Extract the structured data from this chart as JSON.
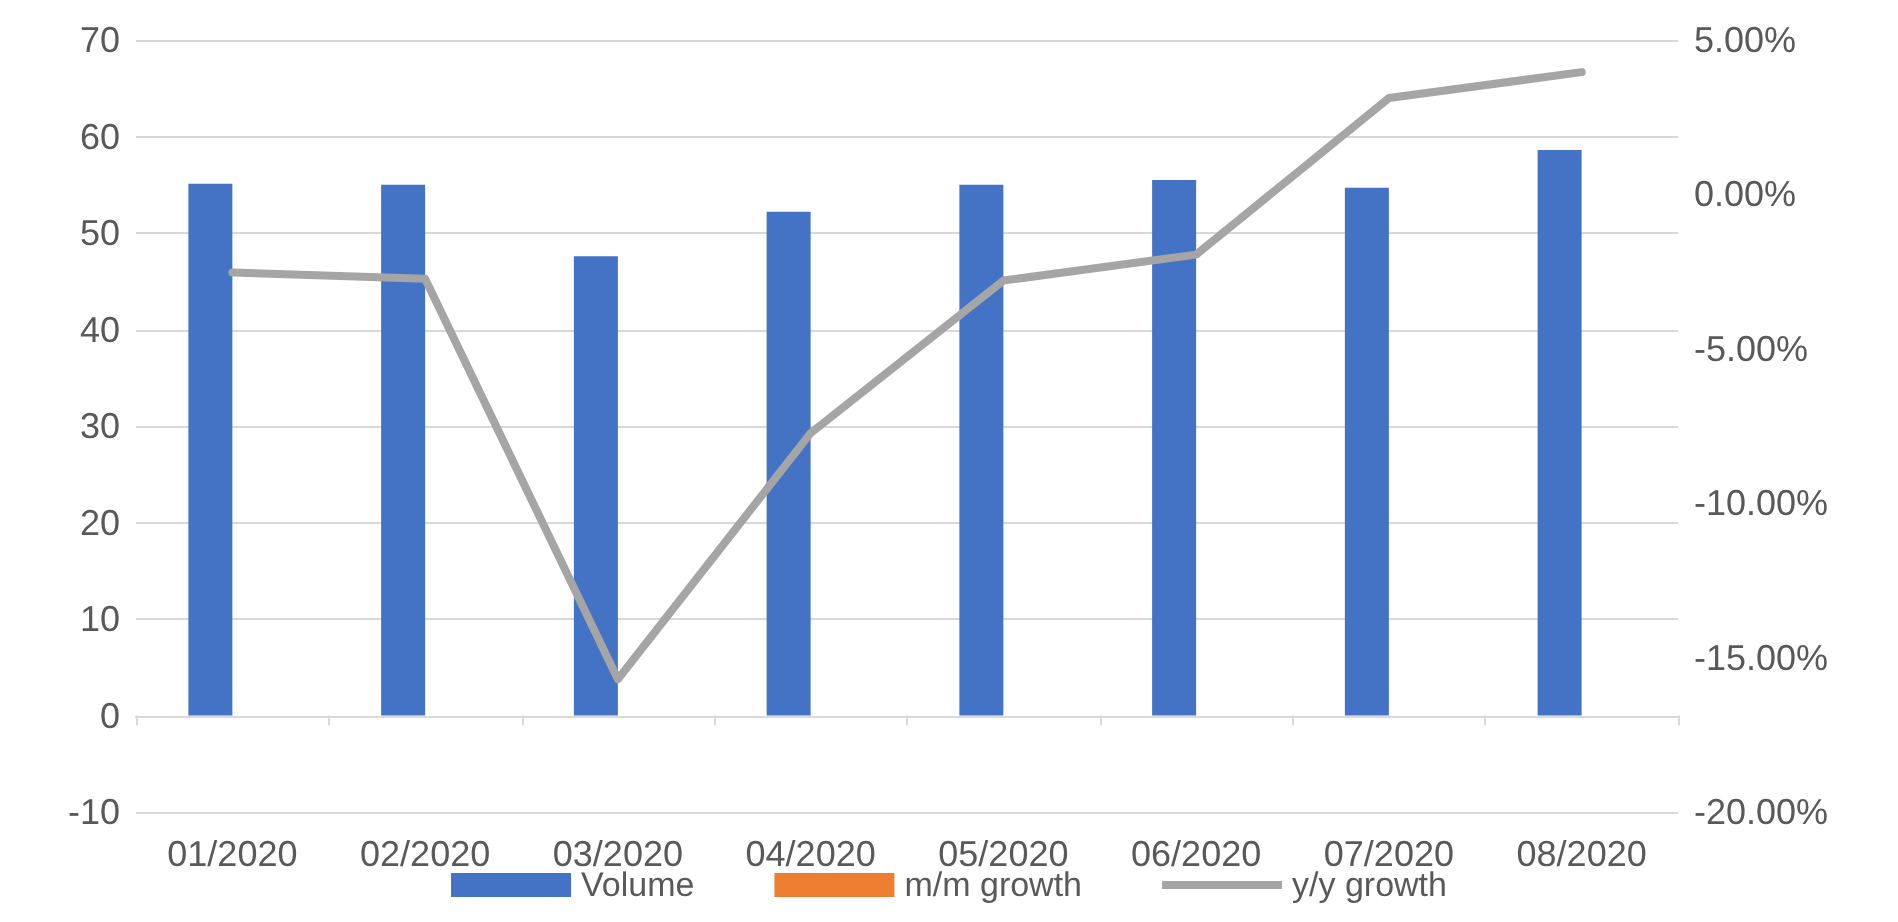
{
  "chart_data": {
    "type": "bar",
    "categories": [
      "01/2020",
      "02/2020",
      "03/2020",
      "04/2020",
      "05/2020",
      "06/2020",
      "07/2020",
      "08/2020"
    ],
    "series": [
      {
        "name": "Volume",
        "color": "#4472c4",
        "values": [
          55.1,
          55.0,
          47.6,
          52.2,
          55.0,
          55.5,
          54.7,
          58.6
        ]
      },
      {
        "name": "m/m growth",
        "color": "#ed7d31",
        "values": [
          null,
          null,
          null,
          null,
          null,
          null,
          null,
          null
        ]
      },
      {
        "name": "y/y growth",
        "type": "line",
        "axis": "y2",
        "color": "#a5a5a5",
        "marker": "none",
        "values": [
          -2.53,
          -2.73,
          -15.7,
          -7.73,
          -2.79,
          -1.95,
          3.12,
          3.96
        ]
      }
    ],
    "ylim": [
      -10,
      70
    ],
    "yticks": [
      -10,
      0,
      10,
      20,
      30,
      40,
      50,
      60,
      70
    ],
    "y2lim": [
      -20,
      5
    ],
    "y2ticks": [
      {
        "value": -20,
        "label": "-20.00%"
      },
      {
        "value": -15,
        "label": "-15.00%"
      },
      {
        "value": -10,
        "label": "-10.00%"
      },
      {
        "value": -5,
        "label": "-5.00%"
      },
      {
        "value": 0,
        "label": "0.00%"
      },
      {
        "value": 5,
        "label": "5.00%"
      }
    ],
    "grid": "y",
    "legend": "bottom"
  }
}
